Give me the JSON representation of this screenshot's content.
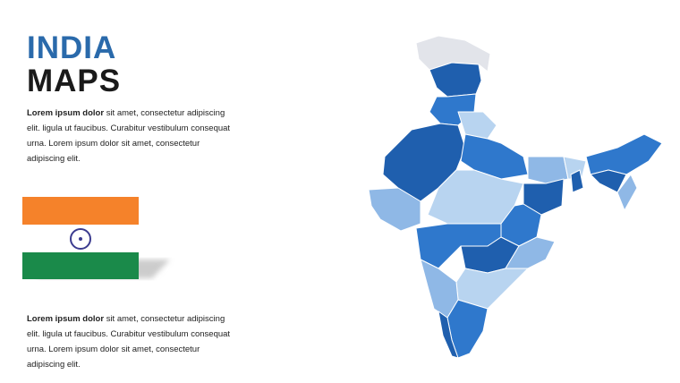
{
  "header": {
    "title_line1": "INDIA",
    "title_line2": "MAPS"
  },
  "paragraphs": [
    {
      "lead": "Lorem ipsum dolor",
      "text": "sit amet, consectetur adipiscing elit. ligula ut faucibus. Curabitur vestibulum consequat urna. Lorem ipsum dolor sit amet, consectetur adipiscing elit."
    },
    {
      "lead": "Lorem ipsum dolor",
      "text": "sit amet, consectetur adipiscing elit. ligula ut faucibus. Curabitur vestibulum consequat urna. Lorem ipsum dolor sit amet, consectetur adipiscing elit."
    }
  ]
}
